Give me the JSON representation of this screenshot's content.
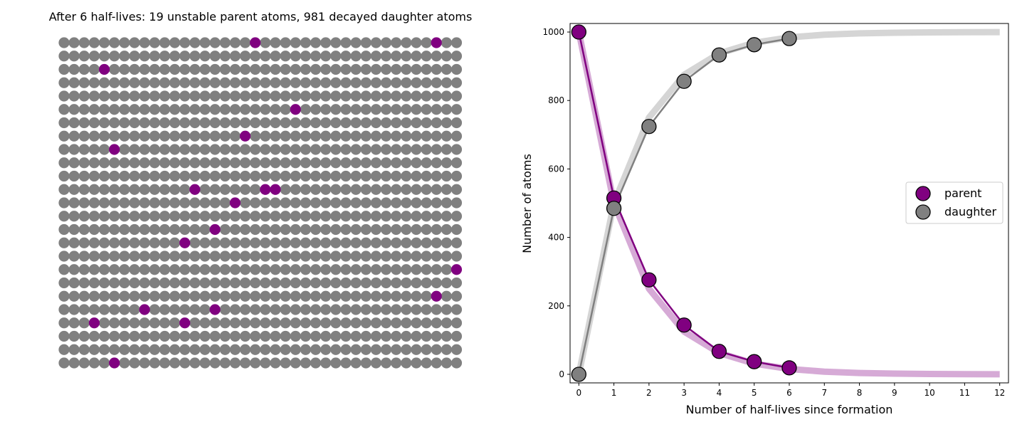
{
  "chart_data": [
    {
      "type": "scatter",
      "title": "After 6 half-lives: 19 unstable parent atoms, 981 decayed daughter atoms",
      "grid": {
        "rows": 25,
        "cols": 40
      },
      "total_atoms": 1000,
      "parent_count": 19,
      "daughter_count": 981,
      "parent_color": "#800080",
      "daughter_color": "#808080",
      "parent_cells": [
        [
          0,
          19
        ],
        [
          0,
          37
        ],
        [
          2,
          4
        ],
        [
          5,
          23
        ],
        [
          7,
          18
        ],
        [
          8,
          5
        ],
        [
          11,
          13
        ],
        [
          11,
          20
        ],
        [
          11,
          21
        ],
        [
          12,
          17
        ],
        [
          14,
          15
        ],
        [
          15,
          12
        ],
        [
          17,
          39
        ],
        [
          19,
          37
        ],
        [
          20,
          8
        ],
        [
          20,
          15
        ],
        [
          21,
          3
        ],
        [
          21,
          12
        ],
        [
          24,
          5
        ]
      ]
    },
    {
      "type": "line",
      "xlabel": "Number of half-lives since formation",
      "ylabel": "Number of atoms",
      "xlim": [
        -0.25,
        12.25
      ],
      "ylim": [
        -25,
        1025
      ],
      "xticks": [
        0,
        1,
        2,
        3,
        4,
        5,
        6,
        7,
        8,
        9,
        10,
        11,
        12
      ],
      "yticks": [
        0,
        200,
        400,
        600,
        800,
        1000
      ],
      "legend_position": "center-right",
      "legend": [
        {
          "label": "parent",
          "color": "#800080"
        },
        {
          "label": "daughter",
          "color": "#808080"
        }
      ],
      "expected_series": [
        {
          "key": "parent_expected",
          "color": "#d4a5d4",
          "x": [
            0,
            1,
            2,
            3,
            4,
            5,
            6,
            7,
            8,
            9,
            10,
            11,
            12
          ],
          "values": [
            1000,
            500,
            250,
            125,
            62.5,
            31.25,
            15.6,
            7.8,
            3.9,
            2,
            1,
            0.5,
            0.2
          ]
        },
        {
          "key": "daughter_expected",
          "color": "#d3d3d3",
          "x": [
            0,
            1,
            2,
            3,
            4,
            5,
            6,
            7,
            8,
            9,
            10,
            11,
            12
          ],
          "values": [
            0,
            500,
            750,
            875,
            937.5,
            968.75,
            984.4,
            992.2,
            996.1,
            998,
            999,
            999.5,
            999.8
          ]
        }
      ],
      "series": [
        {
          "name": "parent",
          "color": "#800080",
          "x": [
            0,
            1,
            2,
            3,
            4,
            5,
            6
          ],
          "values": [
            1000,
            515,
            276,
            144,
            67,
            37,
            19
          ]
        },
        {
          "name": "daughter",
          "color": "#808080",
          "x": [
            0,
            1,
            2,
            3,
            4,
            5,
            6
          ],
          "values": [
            0,
            485,
            724,
            856,
            933,
            963,
            981
          ]
        }
      ]
    }
  ]
}
